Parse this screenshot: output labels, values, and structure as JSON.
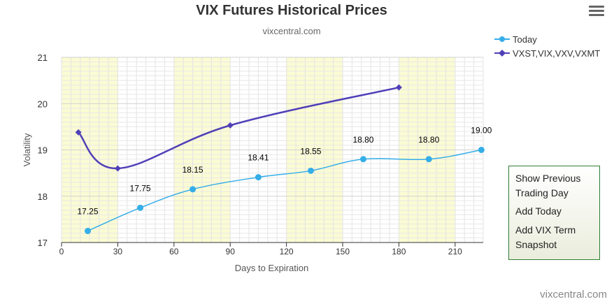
{
  "header": {
    "title": "VIX Futures Historical Prices",
    "subtitle": "vixcentral.com",
    "menu_icon": "hamburger-menu-icon"
  },
  "legend": {
    "items": [
      {
        "label": "Today",
        "color": "#35aee8",
        "symbol": "circle"
      },
      {
        "label": "VXST,VIX,VXV,VXMT",
        "color": "#5040b8",
        "symbol": "diamond"
      }
    ]
  },
  "side_panel": {
    "line1": "Show Previous",
    "line2": "Trading Day",
    "link2": "Add Today",
    "link3_line1": "Add VIX Term",
    "link3_line2": "Snapshot"
  },
  "credit": "vixcentral.com",
  "colors": {
    "band": "#fbfbd4",
    "today": "#35aee8",
    "term": "#5040b8",
    "panel_border": "#2e7d32"
  },
  "chart_data": {
    "type": "line",
    "title": "VIX Futures Historical Prices",
    "subtitle": "vixcentral.com",
    "xlabel": "Days to Expiration",
    "ylabel": "Volatility",
    "xlim": [
      0,
      225
    ],
    "ylim": [
      17,
      21
    ],
    "x_ticks": [
      0,
      30,
      60,
      90,
      120,
      150,
      180,
      210
    ],
    "y_ticks": [
      17,
      18,
      19,
      20,
      21
    ],
    "grid": true,
    "bands_x": [
      [
        0,
        30
      ],
      [
        60,
        90
      ],
      [
        120,
        150
      ],
      [
        180,
        210
      ]
    ],
    "legend_position": "top-right",
    "series": [
      {
        "name": "Today",
        "x": [
          14,
          42,
          70,
          105,
          133,
          161,
          196,
          224
        ],
        "values": [
          17.25,
          17.75,
          18.15,
          18.41,
          18.55,
          18.8,
          18.8,
          19.0
        ],
        "data_labels": [
          "17.25",
          "17.75",
          "18.15",
          "18.41",
          "18.55",
          "18.80",
          "18.80",
          "19.00"
        ],
        "color": "#35aee8",
        "marker": "circle"
      },
      {
        "name": "VXST,VIX,VXV,VXMT",
        "x": [
          9,
          30,
          90,
          180
        ],
        "values": [
          19.38,
          18.6,
          19.53,
          20.35
        ],
        "color": "#5040b8",
        "marker": "diamond"
      }
    ]
  }
}
